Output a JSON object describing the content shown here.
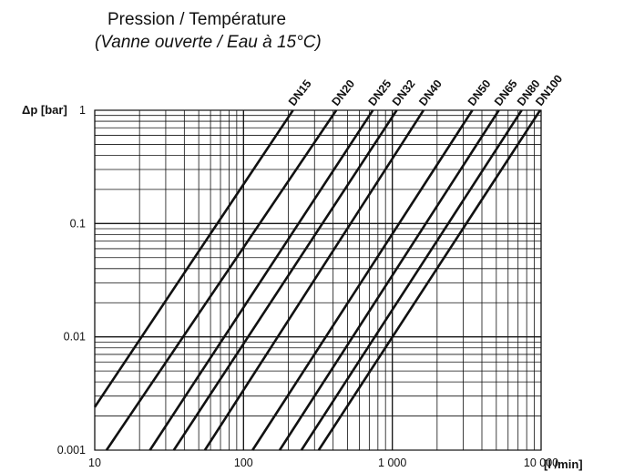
{
  "chart_data": {
    "type": "line",
    "title": "Pression / Température",
    "subtitle": "(Vanne ouverte / Eau à 15°C)",
    "xlabel": "[l /min]",
    "ylabel": "Δp [bar]",
    "x_scale": "log",
    "y_scale": "log",
    "xlim": [
      10,
      10000
    ],
    "ylim": [
      0.001,
      1
    ],
    "grid": true,
    "x_ticks": [
      {
        "value": 10,
        "label": "10"
      },
      {
        "value": 100,
        "label": "100"
      },
      {
        "value": 1000,
        "label": "1 000"
      },
      {
        "value": 10000,
        "label": "10 000"
      }
    ],
    "y_ticks": [
      {
        "value": 0.001,
        "label": "0.001"
      },
      {
        "value": 0.01,
        "label": "0.01"
      },
      {
        "value": 0.1,
        "label": "0.1"
      },
      {
        "value": 1,
        "label": "1"
      }
    ],
    "series": [
      {
        "name": "DN15",
        "points": [
          [
            10,
            0.0024
          ],
          [
            215,
            1
          ]
        ]
      },
      {
        "name": "DN20",
        "points": [
          [
            12,
            0.001
          ],
          [
            420,
            1
          ]
        ]
      },
      {
        "name": "DN25",
        "points": [
          [
            23.5,
            0.001
          ],
          [
            740,
            1
          ]
        ]
      },
      {
        "name": "DN32",
        "points": [
          [
            34,
            0.001
          ],
          [
            1070,
            1
          ]
        ]
      },
      {
        "name": "DN40",
        "points": [
          [
            55,
            0.001
          ],
          [
            1620,
            1
          ]
        ]
      },
      {
        "name": "DN50",
        "points": [
          [
            115,
            0.001
          ],
          [
            3450,
            1
          ]
        ]
      },
      {
        "name": "DN65",
        "points": [
          [
            175,
            0.001
          ],
          [
            5200,
            1
          ]
        ]
      },
      {
        "name": "DN80",
        "points": [
          [
            245,
            0.001
          ],
          [
            7400,
            1
          ]
        ]
      },
      {
        "name": "DN100",
        "points": [
          [
            320,
            0.001
          ],
          [
            9850,
            1
          ]
        ]
      }
    ]
  }
}
